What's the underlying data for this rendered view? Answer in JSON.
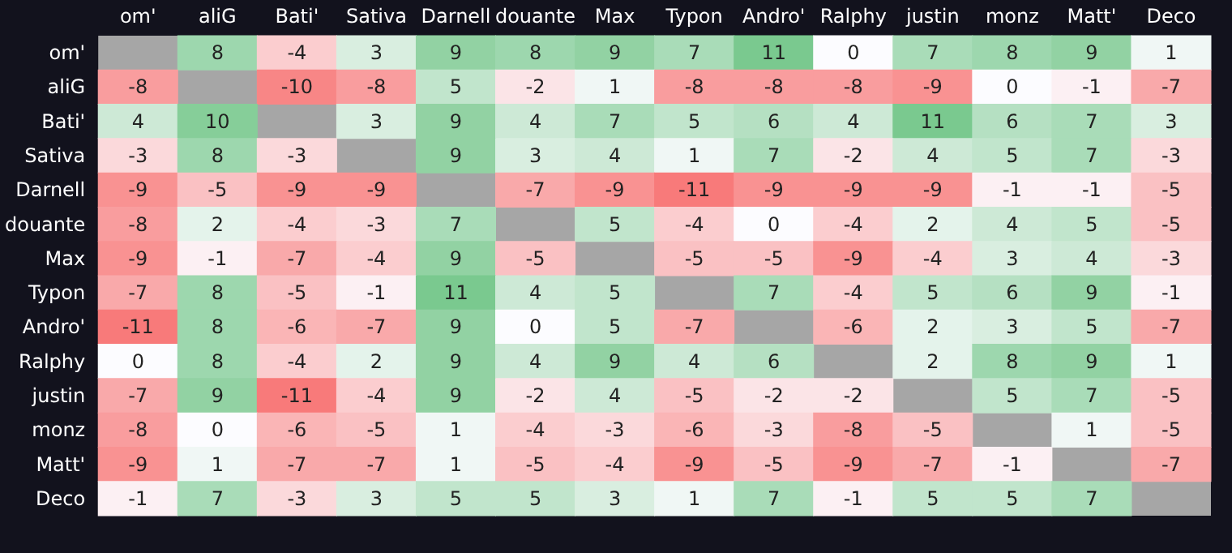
{
  "chart_data": {
    "type": "heatmap",
    "categories": [
      "om'",
      "aliG",
      "Bati'",
      "Sativa",
      "Darnell",
      "douante",
      "Max",
      "Typon",
      "Andro'",
      "Ralphy",
      "justin",
      "monz",
      "Matt'",
      "Deco"
    ],
    "y_categories": [
      "om'",
      "aliG",
      "Bati'",
      "Sativa",
      "Darnell",
      "douante",
      "Max",
      "Typon",
      "Andro'",
      "Ralphy",
      "justin",
      "monz",
      "Matt'",
      "Deco"
    ],
    "cells": [
      [
        null,
        8,
        -4,
        3,
        9,
        8,
        9,
        7,
        11,
        0,
        7,
        8,
        9,
        1
      ],
      [
        -8,
        null,
        -10,
        -8,
        5,
        -2,
        1,
        -8,
        -8,
        -8,
        -9,
        0,
        -1,
        -7
      ],
      [
        4,
        10,
        null,
        3,
        9,
        4,
        7,
        5,
        6,
        4,
        11,
        6,
        7,
        3
      ],
      [
        -3,
        8,
        -3,
        null,
        9,
        3,
        4,
        1,
        7,
        -2,
        4,
        5,
        7,
        -3
      ],
      [
        -9,
        -5,
        -9,
        -9,
        null,
        -7,
        -9,
        -11,
        -9,
        -9,
        -9,
        -1,
        -1,
        -5
      ],
      [
        -8,
        2,
        -4,
        -3,
        7,
        null,
        5,
        -4,
        0,
        -4,
        2,
        4,
        5,
        -5
      ],
      [
        -9,
        -1,
        -7,
        -4,
        9,
        -5,
        null,
        -5,
        -5,
        -9,
        -4,
        3,
        4,
        -3
      ],
      [
        -7,
        8,
        -5,
        -1,
        11,
        4,
        5,
        null,
        7,
        -4,
        5,
        6,
        9,
        -1
      ],
      [
        -11,
        8,
        -6,
        -7,
        9,
        0,
        5,
        -7,
        null,
        -6,
        2,
        3,
        5,
        -7
      ],
      [
        0,
        8,
        -4,
        2,
        9,
        4,
        9,
        4,
        6,
        null,
        2,
        8,
        9,
        1
      ],
      [
        -7,
        9,
        -11,
        -4,
        9,
        -2,
        4,
        -5,
        -2,
        -2,
        null,
        5,
        7,
        -5
      ],
      [
        -8,
        0,
        -6,
        -5,
        1,
        -4,
        -3,
        -6,
        -3,
        -8,
        -5,
        null,
        1,
        -5
      ],
      [
        -9,
        1,
        -7,
        -7,
        1,
        -5,
        -4,
        -9,
        -5,
        -9,
        -7,
        -1,
        null,
        -7
      ],
      [
        -1,
        7,
        -3,
        3,
        5,
        5,
        3,
        1,
        7,
        -1,
        5,
        5,
        7,
        null
      ]
    ],
    "data_labels": true
  }
}
